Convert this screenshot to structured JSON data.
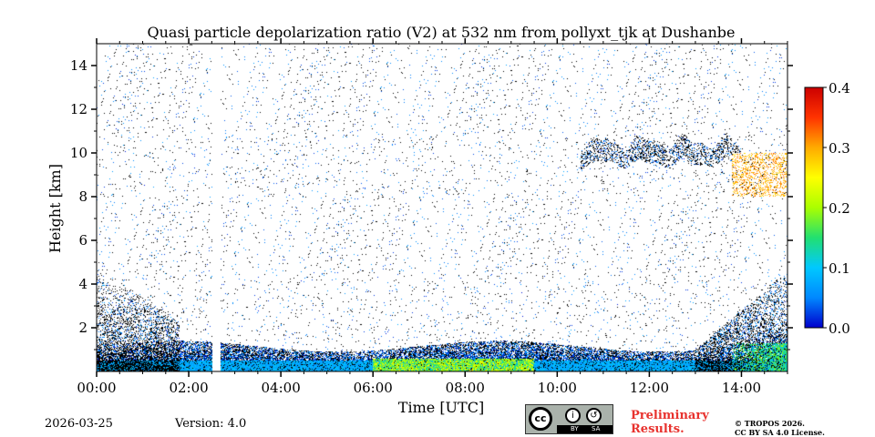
{
  "chart_data": {
    "type": "heatmap",
    "title": "Quasi particle depolarization ratio (V2) at 532 nm from pollyxt_tjk at Dushanbe",
    "xlabel": "Time [UTC]",
    "ylabel": "Height [km]",
    "xlim_hours": [
      0,
      15
    ],
    "ylim_km": [
      0,
      15
    ],
    "x_tick_values": [
      0,
      2,
      4,
      6,
      8,
      10,
      12,
      14
    ],
    "x_tick_labels": [
      "00:00",
      "02:00",
      "04:00",
      "06:00",
      "08:00",
      "10:00",
      "12:00",
      "14:00"
    ],
    "y_tick_values": [
      2,
      4,
      6,
      8,
      10,
      12,
      14
    ],
    "y_tick_labels": [
      "2",
      "4",
      "6",
      "8",
      "10",
      "12",
      "14"
    ],
    "colorbar": {
      "range": [
        0,
        0.4
      ],
      "tick_values": [
        0,
        0.1,
        0.2,
        0.3,
        0.4
      ],
      "tick_labels": [
        "0.0",
        "0.1",
        "0.2",
        "0.3",
        "0.4"
      ],
      "colormap_stops": [
        "#0000cc",
        "#0088ff",
        "#00c8ff",
        "#22e070",
        "#aaff00",
        "#ffff00",
        "#ffaa00",
        "#ff3300",
        "#cc0000"
      ]
    },
    "data_gap_hours": [
      2.52,
      2.7
    ],
    "features": [
      {
        "name": "boundary layer",
        "time_range_hours": [
          0,
          15
        ],
        "height_range_km": [
          0,
          1.5
        ],
        "typical_value": 0.08
      },
      {
        "name": "near-ground dust layer",
        "time_range_hours": [
          6,
          9.5
        ],
        "height_range_km": [
          0,
          0.6
        ],
        "typical_value": 0.2
      },
      {
        "name": "afternoon aerosol layer",
        "time_range_hours": [
          13.8,
          15
        ],
        "height_range_km": [
          0,
          1.3
        ],
        "typical_value": 0.15
      },
      {
        "name": "morning residual layer",
        "time_range_hours": [
          0,
          1.8
        ],
        "height_range_km": [
          0.5,
          4.8
        ],
        "typical_value": 0.05
      },
      {
        "name": "cirrus clouds",
        "time_range_hours": [
          10.5,
          14
        ],
        "height_range_km": [
          9.2,
          11.2
        ],
        "typical_value": 0.04
      },
      {
        "name": "high depolarization layer",
        "time_range_hours": [
          13.8,
          15
        ],
        "height_range_km": [
          8,
          10
        ],
        "typical_value": 0.3
      }
    ]
  },
  "footer": {
    "date": "2026-03-25",
    "version": "Version: 4.0",
    "preliminary_line1": "Preliminary",
    "preliminary_line2": "Results.",
    "copyright_line1": "© TROPOS 2026.",
    "copyright_line2": "CC BY SA 4.0 License.",
    "cc_badge": {
      "main": "cc",
      "by": "BY",
      "sa": "SA",
      "by_symbol": "i",
      "sa_symbol": "↺"
    }
  }
}
